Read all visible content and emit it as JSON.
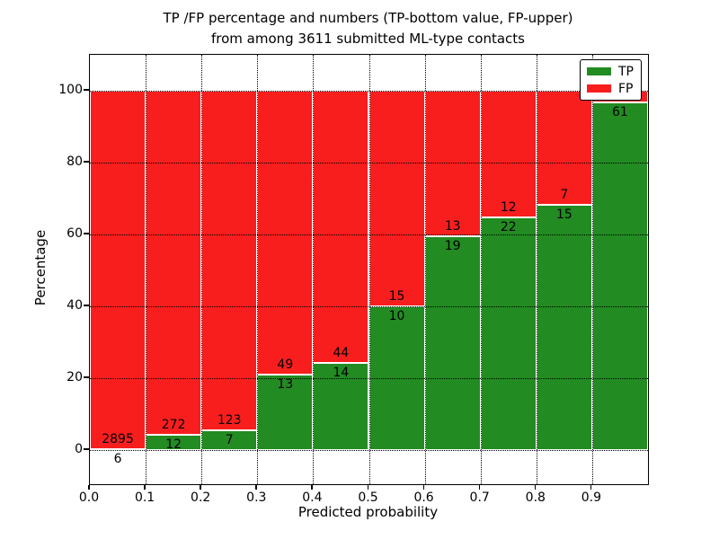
{
  "figure": {
    "title_line1": "TP /FP percentage and numbers (TP-bottom value, FP-upper)",
    "title_line2": "from among 3611 submitted ML-type contacts"
  },
  "x_axis": {
    "label": "Predicted probability",
    "tick_labels": [
      "0.0",
      "0.1",
      "0.2",
      "0.3",
      "0.4",
      "0.5",
      "0.6",
      "0.7",
      "0.8",
      "0.9"
    ]
  },
  "y_axis": {
    "label": "Percentage",
    "tick_values": [
      0,
      20,
      40,
      60,
      80,
      100
    ],
    "tick_labels": [
      "0",
      "20",
      "40",
      "60",
      "80",
      "100"
    ]
  },
  "legend": {
    "items": [
      {
        "label": "TP",
        "color": "#228b22"
      },
      {
        "label": "FP",
        "color": "#f81e1e"
      }
    ]
  },
  "colors": {
    "tp": "#228b22",
    "fp": "#f81e1e",
    "background": "#ffffff",
    "grid": "#000000",
    "text": "#000000"
  },
  "chart_data": {
    "type": "bar",
    "mode": "stacked-normalized-to-100",
    "title": "TP /FP percentage and numbers (TP-bottom value, FP-upper) from among 3611 submitted ML-type contacts",
    "xlabel": "Predicted probability",
    "ylabel": "Percentage",
    "xlim": [
      0.0,
      1.0
    ],
    "ylim": [
      -9.5,
      110
    ],
    "grid": "dotted, on top of bars",
    "legend_position": "upper right",
    "bin_width": 0.1,
    "series_names": [
      "TP",
      "FP"
    ],
    "bins": [
      {
        "x0": 0.0,
        "x1": 0.1,
        "tp_count": 6,
        "fp_count": 2895,
        "tp_pct": 0.21,
        "fp_pct": 99.79
      },
      {
        "x0": 0.1,
        "x1": 0.2,
        "tp_count": 12,
        "fp_count": 272,
        "tp_pct": 4.23,
        "fp_pct": 95.77
      },
      {
        "x0": 0.2,
        "x1": 0.3,
        "tp_count": 7,
        "fp_count": 123,
        "tp_pct": 5.38,
        "fp_pct": 94.62
      },
      {
        "x0": 0.3,
        "x1": 0.4,
        "tp_count": 13,
        "fp_count": 49,
        "tp_pct": 20.97,
        "fp_pct": 79.03
      },
      {
        "x0": 0.4,
        "x1": 0.5,
        "tp_count": 14,
        "fp_count": 44,
        "tp_pct": 24.14,
        "fp_pct": 75.86
      },
      {
        "x0": 0.5,
        "x1": 0.6,
        "tp_count": 10,
        "fp_count": 15,
        "tp_pct": 40.0,
        "fp_pct": 60.0
      },
      {
        "x0": 0.6,
        "x1": 0.7,
        "tp_count": 19,
        "fp_count": 13,
        "tp_pct": 59.38,
        "fp_pct": 40.62
      },
      {
        "x0": 0.7,
        "x1": 0.8,
        "tp_count": 22,
        "fp_count": 12,
        "tp_pct": 64.71,
        "fp_pct": 35.29
      },
      {
        "x0": 0.8,
        "x1": 0.9,
        "tp_count": 15,
        "fp_count": 7,
        "tp_pct": 68.18,
        "fp_pct": 31.82
      },
      {
        "x0": 0.9,
        "x1": 1.0,
        "tp_count": 61,
        "fp_count": null,
        "tp_pct": 96.8,
        "fp_pct": 3.2,
        "fp_label_hidden_by_legend": true
      }
    ]
  }
}
